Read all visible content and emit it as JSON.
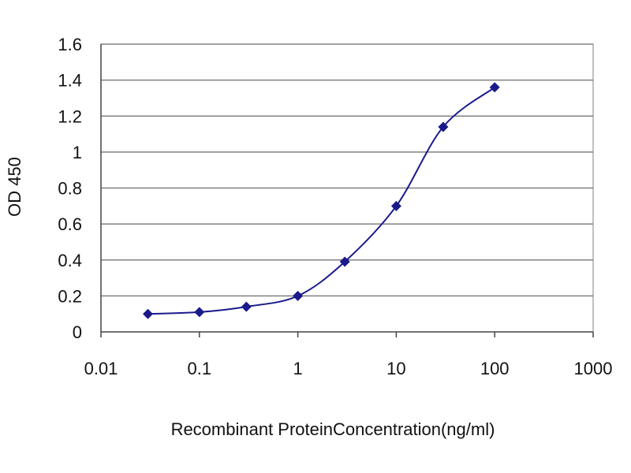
{
  "chart_data": {
    "type": "line",
    "title": "",
    "xlabel": "Recombinant ProteinConcentration(ng/ml)",
    "ylabel": "OD 450",
    "x_scale": "log",
    "xlim": [
      0.01,
      1000
    ],
    "ylim": [
      0,
      1.6
    ],
    "x_ticks": [
      "0.01",
      "0.1",
      "1",
      "10",
      "100",
      "1000"
    ],
    "y_ticks": [
      "0",
      "0.2",
      "0.4",
      "0.6",
      "0.8",
      "1",
      "1.2",
      "1.4",
      "1.6"
    ],
    "grid": "horizontal",
    "legend": "none",
    "series": [
      {
        "x": [
          0.03,
          0.1,
          0.3,
          1,
          3,
          10,
          30,
          100
        ],
        "y": [
          0.1,
          0.11,
          0.14,
          0.2,
          0.39,
          0.7,
          1.14,
          1.36
        ],
        "color": "#1a1a8c"
      }
    ],
    "colors": {
      "plot_background": "#ffffff",
      "gridline": "#808080",
      "line": "#1a1a8c"
    }
  }
}
